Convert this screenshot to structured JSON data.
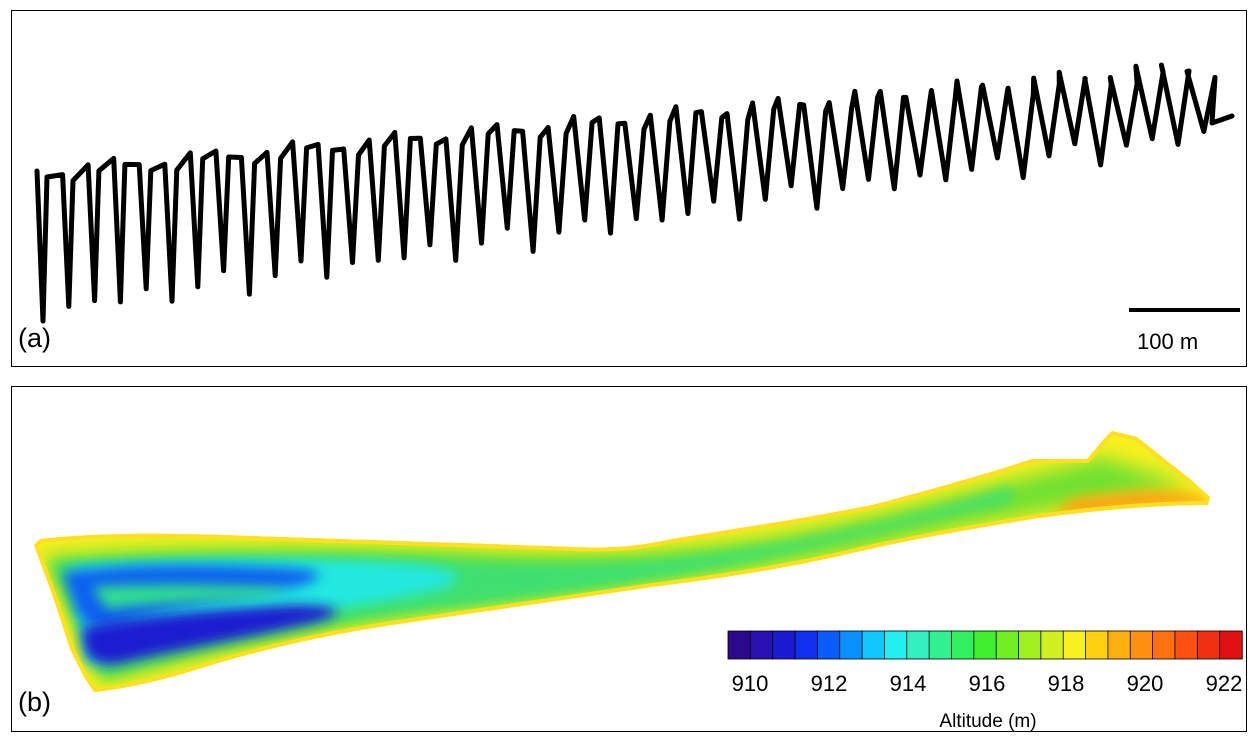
{
  "panel_a": {
    "label": "(a)",
    "scale_bar_label": "100 m"
  },
  "panel_b": {
    "label": "(b)",
    "colorbar": {
      "title": "Altitude (m)",
      "min": 910,
      "max": 922,
      "tick_labels": [
        "910",
        "912",
        "914",
        "916",
        "918",
        "920",
        "922"
      ],
      "colors": [
        "#2a0a8a",
        "#2a10b0",
        "#1a1ad0",
        "#1030f0",
        "#0a5cff",
        "#0a90ff",
        "#10c8ff",
        "#20f0f0",
        "#30f0c0",
        "#30f090",
        "#30f060",
        "#40f030",
        "#70f020",
        "#a0f020",
        "#d0f020",
        "#f8f020",
        "#ffd010",
        "#ffb010",
        "#ff9010",
        "#ff7010",
        "#ff5010",
        "#f03010",
        "#e01010"
      ]
    }
  }
}
